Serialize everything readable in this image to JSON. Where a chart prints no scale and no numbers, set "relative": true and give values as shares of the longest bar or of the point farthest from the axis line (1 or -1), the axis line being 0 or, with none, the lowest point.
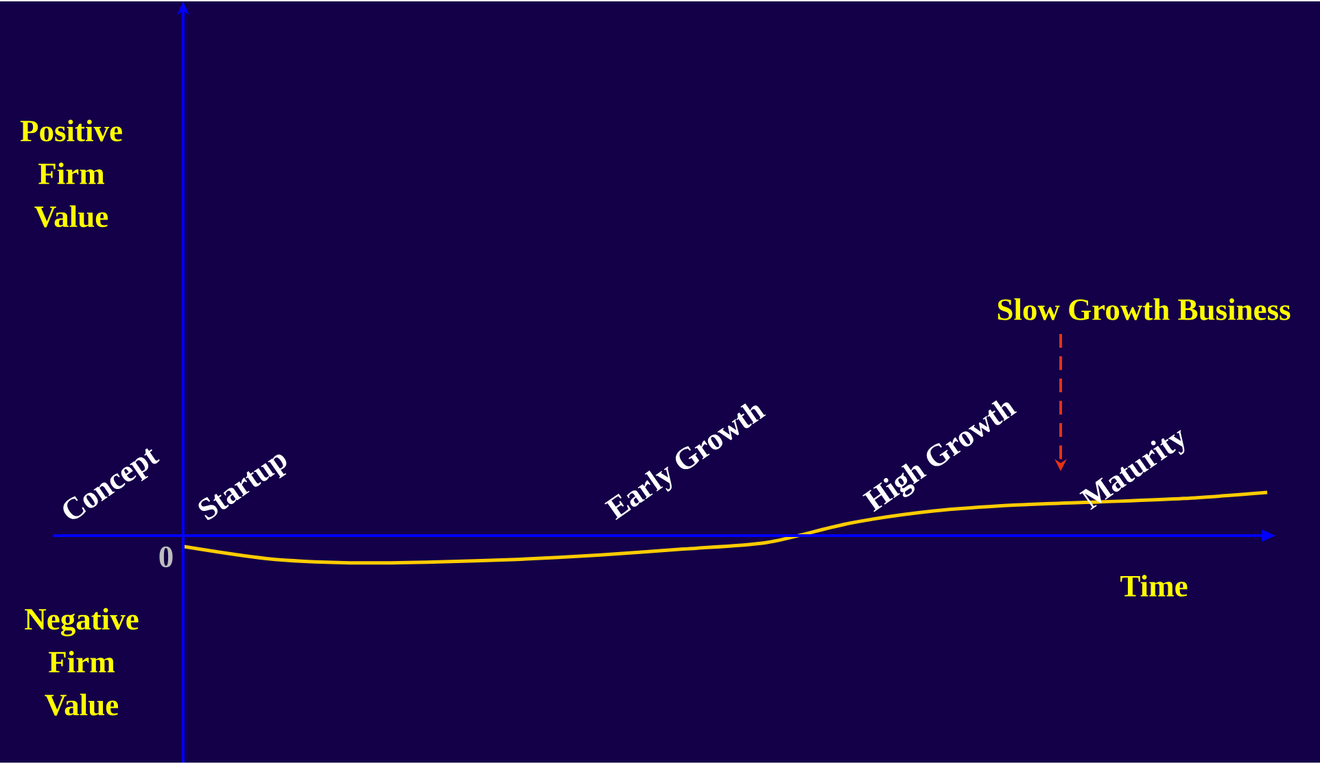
{
  "chart_data": {
    "type": "line",
    "relative": true,
    "xlabel": "Time",
    "categories": [
      null,
      null,
      null,
      null,
      null,
      null,
      null,
      null,
      null,
      null,
      null,
      null,
      null,
      null
    ],
    "series": [
      {
        "color": "#ffcc00",
        "values": [
          -0.25,
          -0.53,
          -0.63,
          -0.61,
          -0.55,
          -0.45,
          -0.31,
          -0.16,
          0.29,
          0.57,
          0.71,
          0.78,
          0.86,
          1
        ]
      }
    ],
    "ref_lines": [
      {
        "axis": "y",
        "value": 0,
        "label": "0",
        "color": "#0000ff"
      }
    ],
    "annotations": [
      "Positive Firm Value",
      "Negative Firm Value",
      "Concept",
      "Startup",
      "Early Growth",
      "High Growth",
      "Maturity",
      "Slow Growth Business"
    ]
  }
}
